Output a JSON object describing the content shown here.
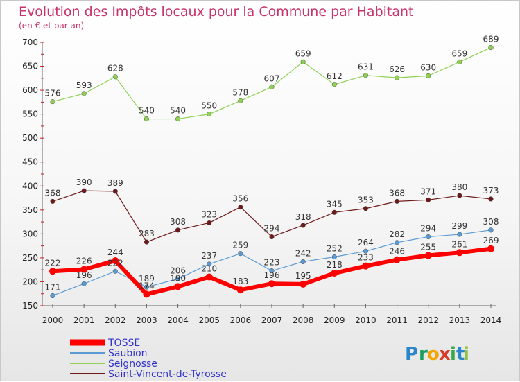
{
  "chart_data": {
    "type": "line",
    "title": "Evolution des Impôts locaux pour la Commune par Habitant",
    "subtitle": "(en € et par an)",
    "categories": [
      "2000",
      "2001",
      "2002",
      "2003",
      "2004",
      "2005",
      "2006",
      "2007",
      "2008",
      "2009",
      "2010",
      "2011",
      "2012",
      "2013",
      "2014"
    ],
    "ylim": [
      150,
      700
    ],
    "yticks": [
      150,
      200,
      250,
      300,
      350,
      400,
      450,
      500,
      550,
      600,
      650,
      700
    ],
    "grid": false,
    "legend_position": "bottom-left",
    "series": [
      {
        "name": "Saint-Vincent-de-Tyrosse",
        "color": "#6e1a1a",
        "width": 1.2,
        "values": [
          368,
          390,
          389,
          283,
          308,
          323,
          356,
          294,
          318,
          345,
          353,
          368,
          371,
          380,
          373
        ]
      },
      {
        "name": "Seignosse",
        "color": "#8fd154",
        "width": 1.2,
        "values": [
          576,
          593,
          628,
          540,
          540,
          550,
          578,
          607,
          659,
          612,
          631,
          626,
          630,
          659,
          689
        ]
      },
      {
        "name": "Saubion",
        "color": "#5b9bd5",
        "width": 1.2,
        "values": [
          171,
          196,
          222,
          189,
          206,
          237,
          259,
          223,
          242,
          252,
          264,
          282,
          294,
          299,
          308
        ]
      },
      {
        "name": "TOSSE",
        "color": "#ff0000",
        "width": 6,
        "values": [
          222,
          226,
          244,
          174,
          190,
          210,
          183,
          196,
          195,
          218,
          233,
          246,
          255,
          261,
          269
        ]
      }
    ],
    "legend_order": [
      "TOSSE",
      "Saubion",
      "Seignosse",
      "Saint-Vincent-de-Tyrosse"
    ]
  },
  "logo": {
    "letters": [
      "P",
      "r",
      "o",
      "x",
      "i",
      "t",
      "i"
    ],
    "colors": [
      "#2a86c8",
      "#1c9e5e",
      "#f2a400",
      "#d93a2a",
      "#3aa84a",
      "#2a86c8",
      "#8fc33a"
    ]
  }
}
